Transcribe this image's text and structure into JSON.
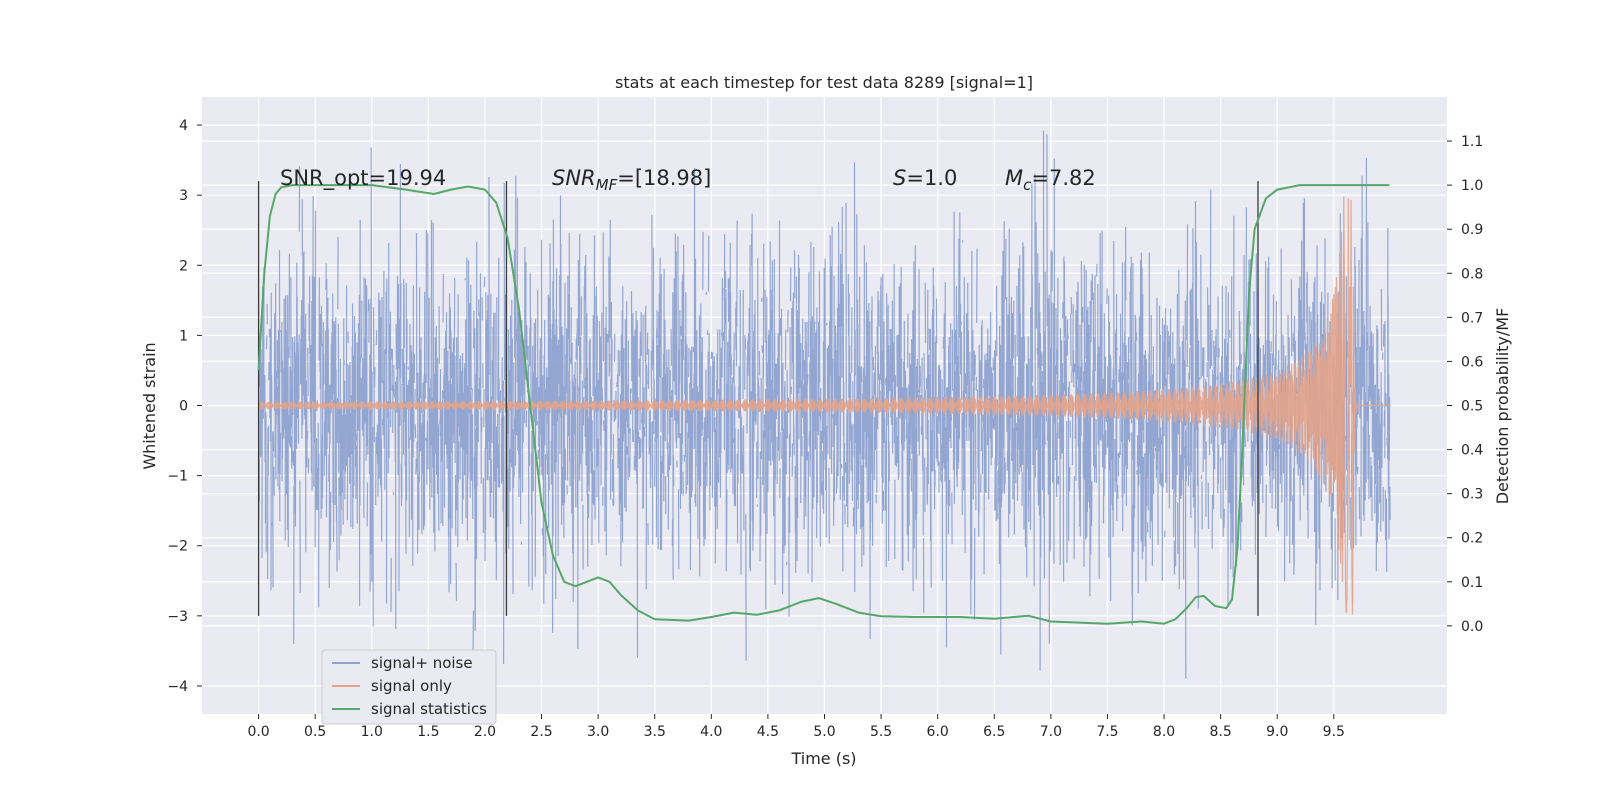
{
  "chart_data": {
    "type": "line",
    "title": "stats at each timestep for test data 8289 [signal=1]",
    "xlabel": "Time (s)",
    "ylabel_left": "Whitened strain",
    "ylabel_right": "Detection probability/MF",
    "xlim": [
      -0.5,
      10.5
    ],
    "ylim_left": [
      -4.4,
      4.4
    ],
    "ylim_right": [
      -0.2,
      1.2
    ],
    "xticks": [
      "0.0",
      "0.5",
      "1.0",
      "1.5",
      "2.0",
      "2.5",
      "3.0",
      "3.5",
      "4.0",
      "4.5",
      "5.0",
      "5.5",
      "6.0",
      "6.5",
      "7.0",
      "7.5",
      "8.0",
      "8.5",
      "9.0",
      "9.5"
    ],
    "yticks_left": [
      "4",
      "3",
      "2",
      "1",
      "0",
      "−1",
      "−2",
      "−3",
      "−4"
    ],
    "yticks_right": [
      "1.1",
      "1.0",
      "0.9",
      "0.8",
      "0.7",
      "0.6",
      "0.5",
      "0.4",
      "0.3",
      "0.2",
      "0.1",
      "0.0"
    ],
    "grid": true,
    "legend_placement": "lower-left",
    "annotations": {
      "snr_opt": "SNR_opt=19.94",
      "snr_mf_label": "SNR",
      "snr_mf_sub": "MF",
      "snr_mf_value": "=[18.98]",
      "s_label": "S",
      "s_value": "=1.0",
      "mc_label": "M",
      "mc_sub": "c",
      "mc_value": "=7.82"
    },
    "vertical_markers_s": [
      0.0,
      2.19,
      8.83
    ],
    "series": [
      {
        "name": "signal+ noise",
        "color": "#8ea2cf",
        "axis": "left",
        "description_range": [
          -4.1,
          4.1
        ]
      },
      {
        "name": "signal only",
        "color": "#e3a38a",
        "axis": "left",
        "chirp_end_time": 9.67,
        "peak_amplitude": 3.0
      },
      {
        "name": "signal statistics",
        "color": "#55a868",
        "axis": "right",
        "x": [
          0.0,
          0.05,
          0.1,
          0.15,
          0.2,
          0.3,
          0.5,
          1.0,
          1.3,
          1.55,
          1.7,
          1.85,
          2.0,
          2.1,
          2.2,
          2.3,
          2.4,
          2.5,
          2.6,
          2.7,
          2.8,
          2.9,
          3.0,
          3.1,
          3.2,
          3.35,
          3.5,
          3.8,
          4.0,
          4.2,
          4.4,
          4.6,
          4.8,
          4.95,
          5.1,
          5.3,
          5.5,
          5.8,
          6.0,
          6.2,
          6.5,
          6.8,
          7.0,
          7.5,
          7.8,
          8.0,
          8.1,
          8.2,
          8.28,
          8.35,
          8.45,
          8.55,
          8.6,
          8.65,
          8.7,
          8.75,
          8.8,
          8.9,
          9.0,
          9.2,
          9.5,
          9.99
        ],
        "values": [
          0.58,
          0.8,
          0.93,
          0.98,
          0.995,
          1.0,
          1.0,
          1.0,
          0.99,
          0.98,
          0.99,
          0.997,
          0.99,
          0.96,
          0.88,
          0.72,
          0.5,
          0.28,
          0.16,
          0.1,
          0.09,
          0.1,
          0.11,
          0.1,
          0.07,
          0.035,
          0.015,
          0.012,
          0.02,
          0.03,
          0.025,
          0.035,
          0.055,
          0.063,
          0.05,
          0.03,
          0.022,
          0.02,
          0.02,
          0.02,
          0.016,
          0.023,
          0.01,
          0.005,
          0.01,
          0.005,
          0.015,
          0.04,
          0.065,
          0.068,
          0.045,
          0.04,
          0.06,
          0.18,
          0.45,
          0.75,
          0.9,
          0.97,
          0.99,
          1.0,
          1.0,
          1.0
        ]
      }
    ]
  }
}
